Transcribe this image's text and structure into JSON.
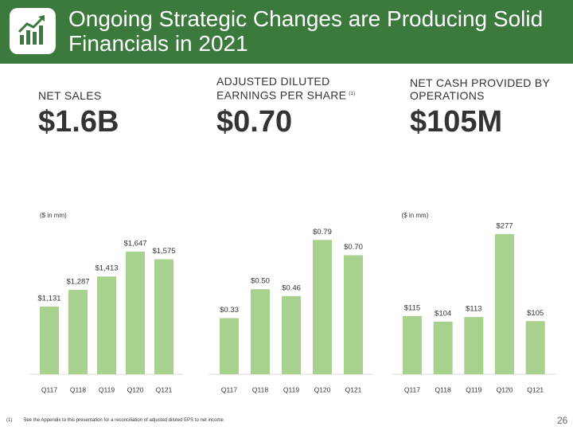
{
  "header": {
    "title": "Ongoing Strategic Changes are Producing Solid Financials in 2021"
  },
  "kpis": [
    {
      "label": "NET SALES",
      "value": "$1.6B"
    },
    {
      "label": "ADJUSTED DILUTED EARNINGS PER SHARE",
      "note": "(1)",
      "value": "$0.70"
    },
    {
      "label": "NET CASH PROVIDED BY OPERATIONS",
      "value": "$105M"
    }
  ],
  "chart_data": [
    {
      "type": "bar",
      "subtitle": "($ in mm)",
      "categories": [
        "Q117",
        "Q118",
        "Q119",
        "Q120",
        "Q121"
      ],
      "values": [
        1131,
        1287,
        1413,
        1647,
        1575
      ],
      "value_labels": [
        "$1,131",
        "$1,287",
        "$1,413",
        "$1,647",
        "$1,575"
      ],
      "color": "#a9d18e",
      "ylim": [
        495,
        2140
      ]
    },
    {
      "type": "bar",
      "categories": [
        "Q117",
        "Q118",
        "Q119",
        "Q120",
        "Q121"
      ],
      "values": [
        0.33,
        0.5,
        0.46,
        0.79,
        0.7
      ],
      "value_labels": [
        "$0.33",
        "$0.50",
        "$0.46",
        "$0.79",
        "$0.70"
      ],
      "color": "#a9d18e",
      "ylim": [
        0,
        1.03
      ]
    },
    {
      "type": "bar",
      "subtitle": "($ in mm)",
      "categories": [
        "Q117",
        "Q118",
        "Q119",
        "Q120",
        "Q121"
      ],
      "values": [
        115,
        104,
        113,
        277,
        105
      ],
      "value_labels": [
        "$115",
        "$104",
        "$113",
        "$277",
        "$105"
      ],
      "color": "#a9d18e",
      "ylim": [
        0,
        346
      ]
    }
  ],
  "footnote": {
    "marker": "(1)",
    "text": "See the Appendix to this presentation for a reconciliation of adjusted diluted EPS to net income"
  },
  "page_number": "26"
}
